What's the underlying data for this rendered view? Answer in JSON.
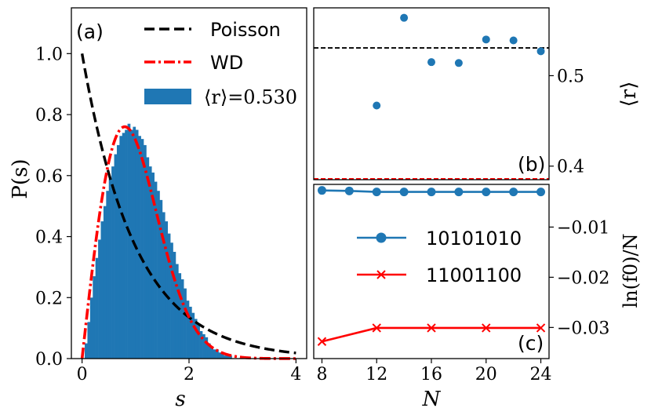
{
  "colors": {
    "blue": "#1f77b4",
    "red": "#ff0000",
    "black": "#000000"
  },
  "chart_data": [
    {
      "panel": "a",
      "panel_label": "(a)",
      "type": "bar",
      "xlabel": "s",
      "ylabel": "P(s)",
      "xlim": [
        -0.2,
        4.2
      ],
      "ylim": [
        0,
        1.15
      ],
      "xticks": [
        0,
        2,
        4
      ],
      "yticks": [
        0.0,
        0.2,
        0.4,
        0.6,
        0.8,
        1.0
      ],
      "xtick_labels": [
        "0",
        "2",
        "4"
      ],
      "ytick_labels": [
        "0.0",
        "0.2",
        "0.4",
        "0.6",
        "0.8",
        "1.0"
      ],
      "legend": [
        {
          "label": "Poisson",
          "style": "dashed",
          "color": "#000000"
        },
        {
          "label": "WD",
          "style": "dashdot",
          "color": "#ff0000"
        },
        {
          "label": "⟨r⟩=0.530",
          "style": "patch",
          "color": "#1f77b4"
        }
      ],
      "histogram": {
        "bin_width": 0.05,
        "start": 0.0,
        "values": [
          0.0,
          0.05,
          0.12,
          0.2,
          0.27,
          0.33,
          0.39,
          0.45,
          0.5,
          0.55,
          0.59,
          0.63,
          0.67,
          0.7,
          0.73,
          0.74,
          0.75,
          0.77,
          0.75,
          0.76,
          0.75,
          0.73,
          0.72,
          0.7,
          0.66,
          0.63,
          0.61,
          0.58,
          0.55,
          0.52,
          0.48,
          0.45,
          0.41,
          0.38,
          0.35,
          0.31,
          0.28,
          0.26,
          0.23,
          0.19,
          0.17,
          0.15,
          0.13,
          0.11,
          0.09,
          0.08,
          0.07,
          0.05,
          0.04,
          0.03,
          0.03,
          0.02,
          0.02,
          0.01,
          0.01,
          0.01,
          0.0,
          0.0,
          0.0,
          0.0
        ]
      },
      "curves": [
        {
          "name": "Poisson",
          "function": "exp(-s)",
          "color": "#000000",
          "style": "dashed"
        },
        {
          "name": "WD",
          "function": "(pi/2) s exp(-pi s^2/4)",
          "color": "#ff0000",
          "style": "dashdot"
        }
      ]
    },
    {
      "panel": "b",
      "panel_label": "(b)",
      "type": "scatter",
      "ylabel": "⟨r⟩",
      "xlim": [
        7.4,
        24.6
      ],
      "ylim": [
        0.385,
        0.575
      ],
      "yticks": [
        0.4,
        0.5
      ],
      "ytick_labels": [
        "0.4",
        "0.5"
      ],
      "x": [
        12,
        14,
        16,
        18,
        20,
        22,
        24
      ],
      "y": [
        0.467,
        0.564,
        0.515,
        0.514,
        0.54,
        0.539,
        0.527
      ],
      "hlines": [
        {
          "y": 0.5307,
          "color": "#000000",
          "style": "dashed"
        },
        {
          "y": 0.386,
          "color": "#ff0000",
          "style": "dashed"
        }
      ]
    },
    {
      "panel": "c",
      "panel_label": "(c)",
      "type": "line",
      "xlabel": "N",
      "ylabel": "ln(f0)/N",
      "xlim": [
        7.4,
        24.6
      ],
      "ylim": [
        -0.0362,
        -0.0015
      ],
      "xticks": [
        8,
        12,
        16,
        20,
        24
      ],
      "xtick_labels": [
        "8",
        "12",
        "16",
        "20",
        "24"
      ],
      "yticks": [
        -0.01,
        -0.02,
        -0.03
      ],
      "ytick_labels": [
        "−0.01",
        "−0.02",
        "−0.03"
      ],
      "series": [
        {
          "name": "10101010",
          "color": "#1f77b4",
          "marker": "circle",
          "x": [
            8,
            10,
            12,
            14,
            16,
            18,
            20,
            22,
            24
          ],
          "y": [
            -0.0027,
            -0.0028,
            -0.003,
            -0.003,
            -0.003,
            -0.003,
            -0.003,
            -0.003,
            -0.003
          ]
        },
        {
          "name": "11001100",
          "color": "#ff0000",
          "marker": "x",
          "x": [
            8,
            12,
            16,
            20,
            24
          ],
          "y": [
            -0.0328,
            -0.0301,
            -0.0301,
            -0.0301,
            -0.0301
          ]
        }
      ]
    }
  ]
}
